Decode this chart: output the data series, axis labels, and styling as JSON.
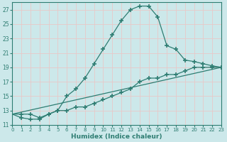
{
  "xlabel": "Humidex (Indice chaleur)",
  "bg_color": "#cce8ea",
  "grid_color": "#e8c8c8",
  "line_color": "#2e7d72",
  "xlim": [
    0,
    23
  ],
  "ylim": [
    11,
    28
  ],
  "yticks": [
    11,
    13,
    15,
    17,
    19,
    21,
    23,
    25,
    27
  ],
  "xticks": [
    0,
    1,
    2,
    3,
    4,
    5,
    6,
    7,
    8,
    9,
    10,
    11,
    12,
    13,
    14,
    15,
    16,
    17,
    18,
    19,
    20,
    21,
    22,
    23
  ],
  "line1_x": [
    0,
    1,
    2,
    3,
    4,
    5,
    6,
    7,
    8,
    9,
    10,
    11,
    12,
    13,
    14,
    15,
    16,
    17,
    18,
    19,
    20,
    21,
    22,
    23
  ],
  "line1_y": [
    12.5,
    12.0,
    11.8,
    11.8,
    12.5,
    13.0,
    15.0,
    16.0,
    17.5,
    19.5,
    21.5,
    23.5,
    25.5,
    27.0,
    27.5,
    27.5,
    26.0,
    22.0,
    21.5,
    20.0,
    19.8,
    19.5,
    19.2,
    19.0
  ],
  "line2_x": [
    0,
    1,
    2,
    3,
    4,
    5,
    6,
    7,
    8,
    9,
    10,
    11,
    12,
    13,
    14,
    15,
    16,
    17,
    18,
    19,
    20,
    21,
    22,
    23
  ],
  "line2_y": [
    12.5,
    12.5,
    12.5,
    12.0,
    12.5,
    13.0,
    13.0,
    13.5,
    13.5,
    14.0,
    14.5,
    15.0,
    15.5,
    16.0,
    17.0,
    17.5,
    17.5,
    18.0,
    18.0,
    18.5,
    19.0,
    19.0,
    19.0,
    19.0
  ],
  "line3_x": [
    0,
    23
  ],
  "line3_y": [
    12.5,
    19.0
  ]
}
